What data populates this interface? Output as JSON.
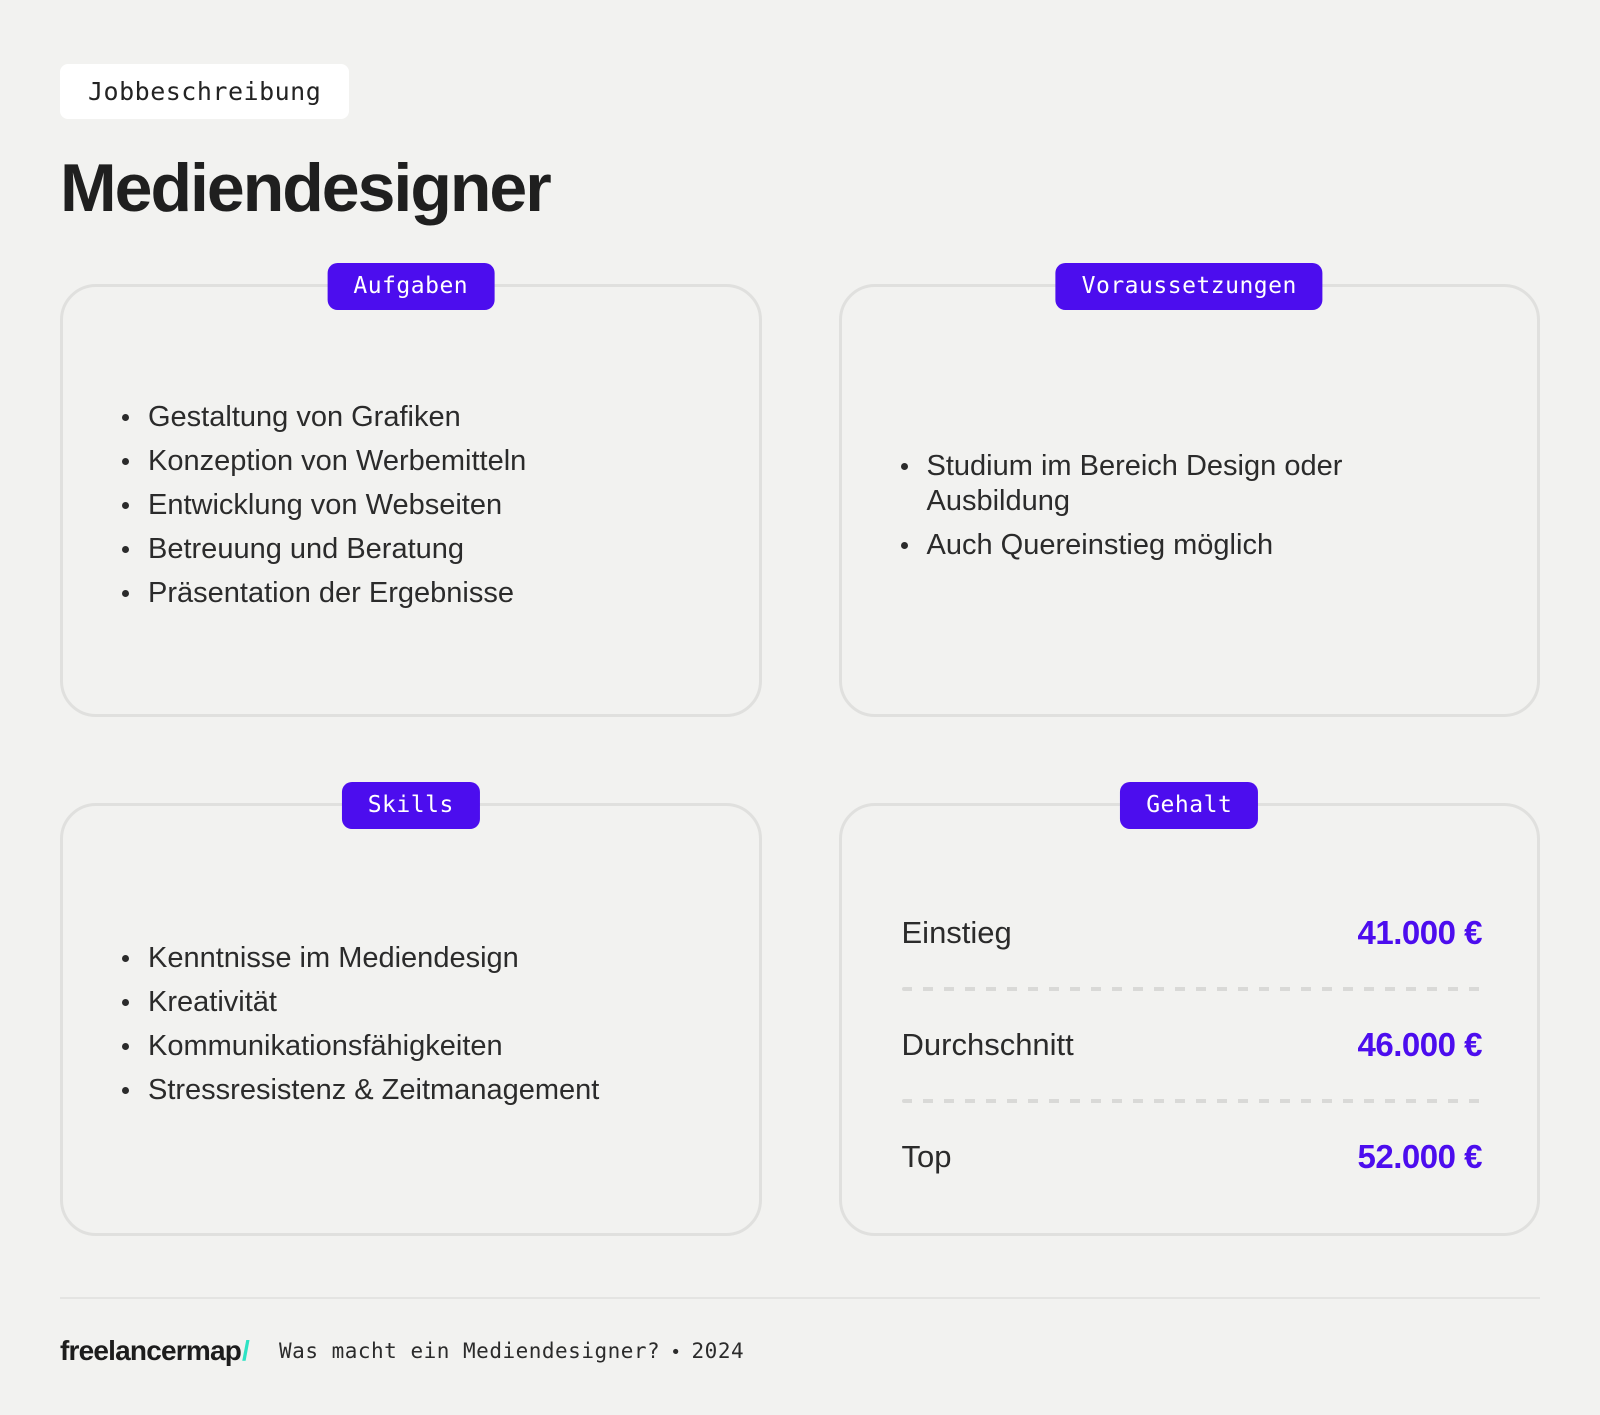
{
  "header": {
    "tag": "Jobbeschreibung",
    "title": "Mediendesigner"
  },
  "cards": {
    "aufgaben": {
      "badge": "Aufgaben",
      "items": [
        "Gestaltung von Grafiken",
        "Konzeption von Werbemitteln",
        "Entwicklung von Webseiten",
        "Betreuung und Beratung",
        "Präsentation der Ergebnisse"
      ]
    },
    "voraussetzungen": {
      "badge": "Voraussetzungen",
      "items": [
        "Studium im Bereich Design oder Ausbildung",
        "Auch Quereinstieg möglich"
      ]
    },
    "skills": {
      "badge": "Skills",
      "items": [
        "Kenntnisse im Mediendesign",
        "Kreativität",
        "Kommunikationsfähigkeiten",
        "Stressresistenz & Zeitmanagement"
      ]
    },
    "gehalt": {
      "badge": "Gehalt",
      "rows": [
        {
          "label": "Einstieg",
          "value": "41.000 €"
        },
        {
          "label": "Durchschnitt",
          "value": "46.000 €"
        },
        {
          "label": "Top",
          "value": "52.000 €"
        }
      ]
    }
  },
  "footer": {
    "logo_text": "freelancermap",
    "logo_slash": "/",
    "caption": "Was macht ein Mediendesigner?",
    "separator": "•",
    "year": "2024"
  },
  "colors": {
    "accent": "#4C0DEE",
    "background": "#F2F2F0",
    "card_border": "#E0E0DE",
    "text": "#2B2B2B",
    "dashed_divider": "#D9D9D7",
    "logo_slash_teal": "#2EE3C4",
    "badge_text": "#FFFFFF",
    "tag_background": "#FFFFFF"
  }
}
